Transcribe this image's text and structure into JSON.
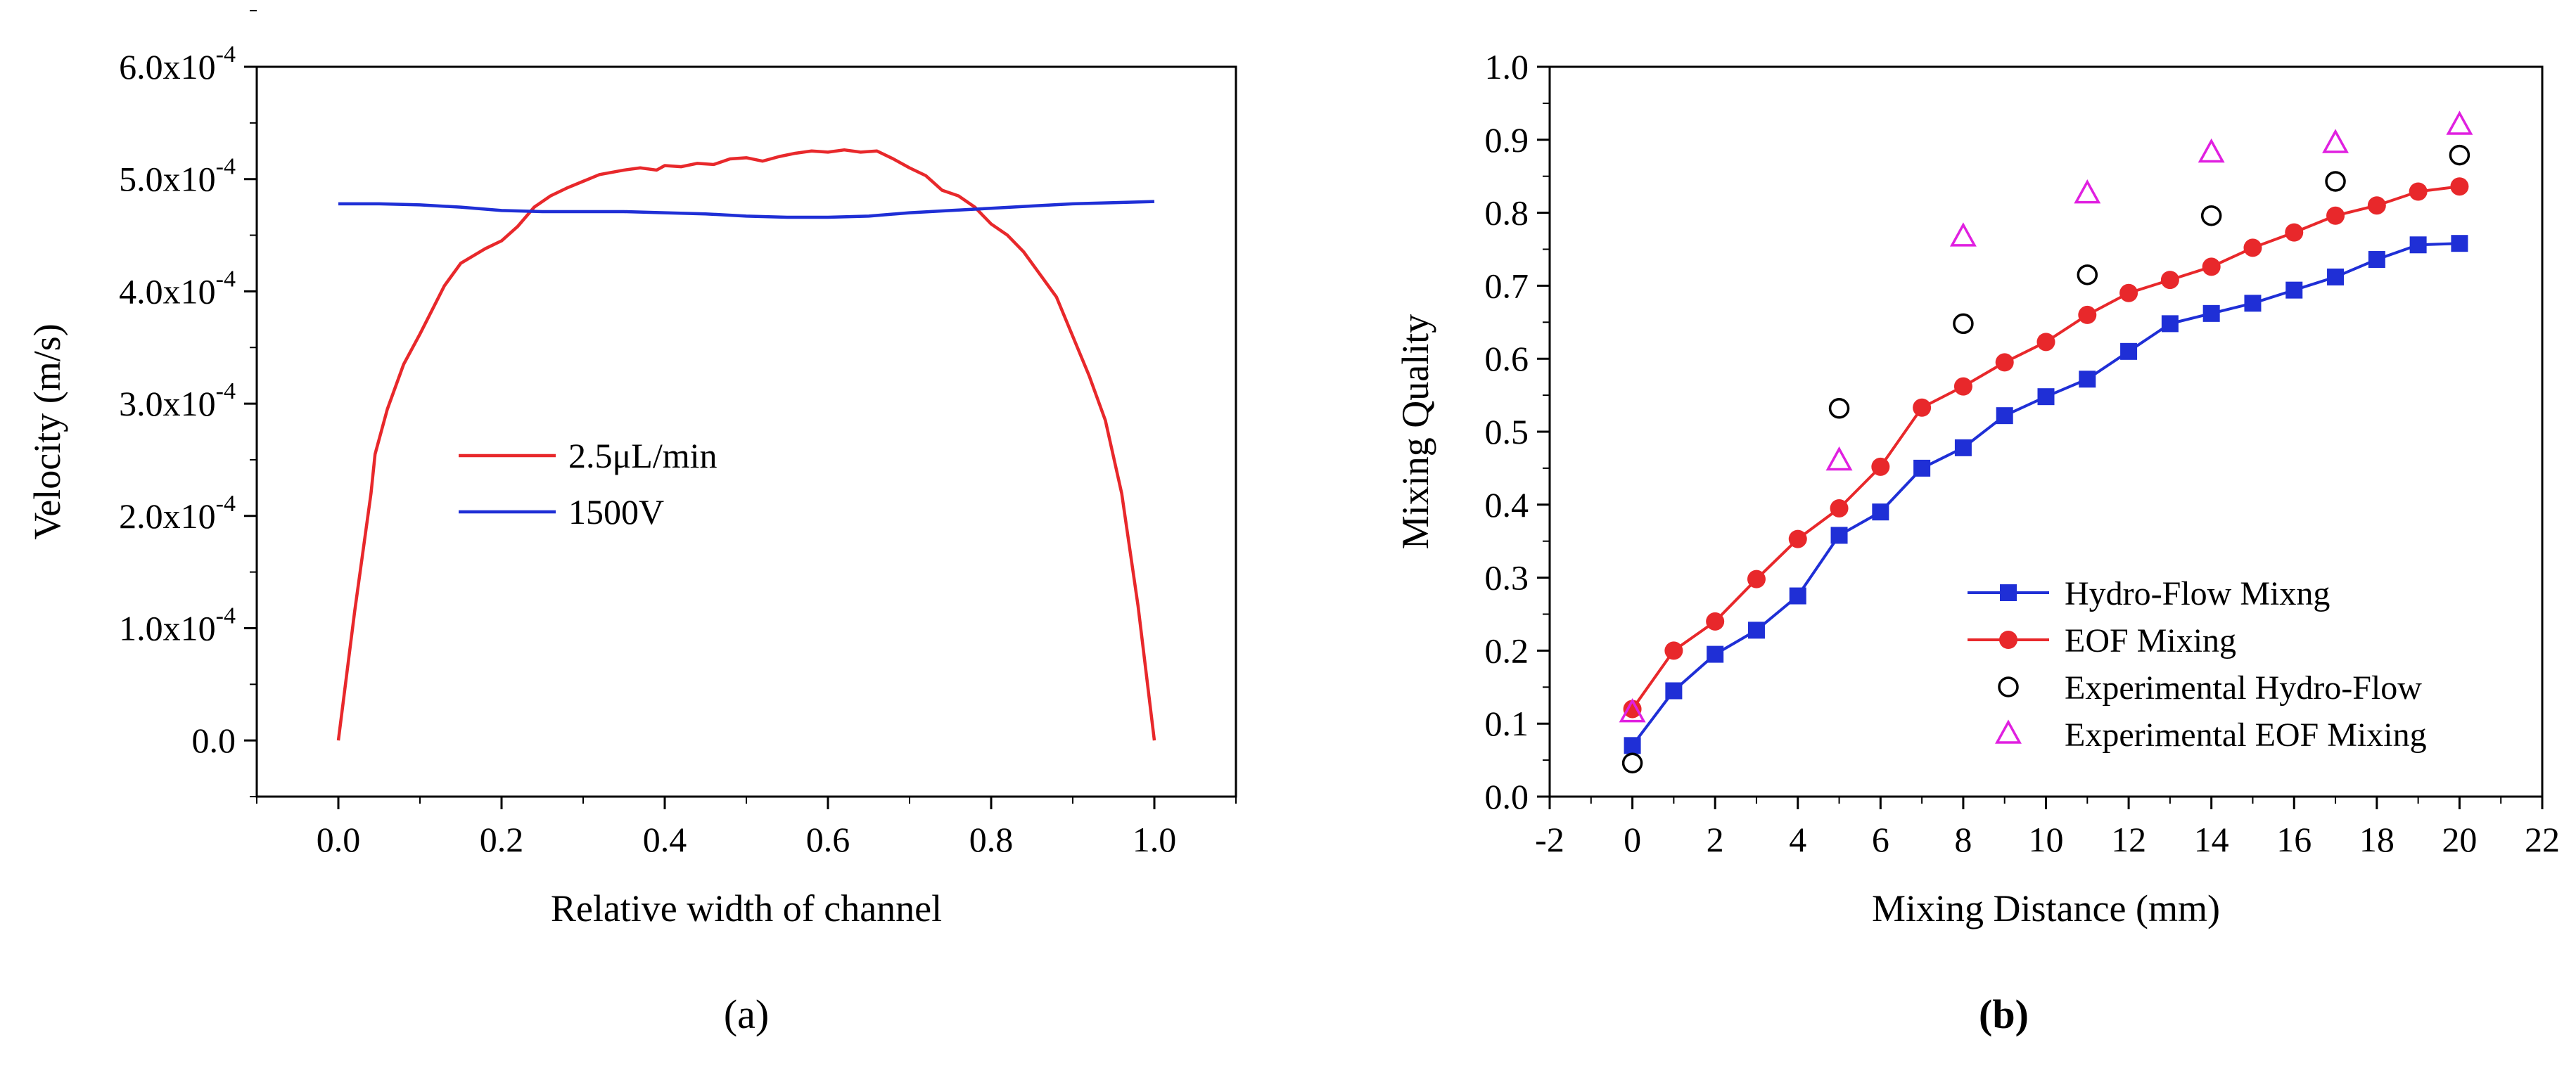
{
  "chart_data": [
    {
      "panel_label": "(a)",
      "type": "line",
      "title": "",
      "xlabel": "Relative width of channel",
      "ylabel": "Velocity (m/s)",
      "xlim": [
        -0.1,
        1.1
      ],
      "ylim": [
        -5e-05,
        0.0006
      ],
      "xticks": [
        0.0,
        0.2,
        0.4,
        0.6,
        0.8,
        1.0
      ],
      "xtick_labels": [
        "0.0",
        "0.2",
        "0.4",
        "0.6",
        "0.8",
        "1.0"
      ],
      "yticks": [
        0,
        0.0001,
        0.0002,
        0.0003,
        0.0004,
        0.0005,
        0.0006
      ],
      "ytick_labels": [
        {
          "mant": "0.0",
          "exp": ""
        },
        {
          "mant": "1.0x10",
          "exp": "-4"
        },
        {
          "mant": "2.0x10",
          "exp": "-4"
        },
        {
          "mant": "3.0x10",
          "exp": "-4"
        },
        {
          "mant": "4.0x10",
          "exp": "-4"
        },
        {
          "mant": "5.0x10",
          "exp": "-4"
        },
        {
          "mant": "6.0x10",
          "exp": "-4"
        }
      ],
      "legend_position": "center",
      "series": [
        {
          "name": "2.5μL/min",
          "color": "#e8282b",
          "x": [
            0.0,
            0.02,
            0.04,
            0.045,
            0.06,
            0.08,
            0.1,
            0.13,
            0.15,
            0.18,
            0.2,
            0.22,
            0.24,
            0.26,
            0.28,
            0.3,
            0.32,
            0.35,
            0.37,
            0.39,
            0.4,
            0.42,
            0.44,
            0.46,
            0.48,
            0.5,
            0.52,
            0.54,
            0.56,
            0.58,
            0.6,
            0.62,
            0.64,
            0.66,
            0.68,
            0.7,
            0.72,
            0.74,
            0.76,
            0.78,
            0.8,
            0.82,
            0.84,
            0.86,
            0.88,
            0.9,
            0.92,
            0.94,
            0.96,
            0.98,
            1.0
          ],
          "y": [
            0.0,
            0.000115,
            0.00022,
            0.000255,
            0.000295,
            0.000335,
            0.000362,
            0.000405,
            0.000425,
            0.000438,
            0.000445,
            0.000458,
            0.000475,
            0.000485,
            0.000492,
            0.000498,
            0.000504,
            0.000508,
            0.00051,
            0.000508,
            0.000512,
            0.000511,
            0.000514,
            0.000513,
            0.000518,
            0.000519,
            0.000516,
            0.00052,
            0.000523,
            0.000525,
            0.000524,
            0.000526,
            0.000524,
            0.000525,
            0.000518,
            0.00051,
            0.000503,
            0.00049,
            0.000485,
            0.000475,
            0.00046,
            0.00045,
            0.000435,
            0.000415,
            0.000395,
            0.00036,
            0.000325,
            0.000285,
            0.00022,
            0.00012,
            0.0
          ]
        },
        {
          "name": "1500V",
          "color": "#1f2fd6",
          "x": [
            0.0,
            0.05,
            0.1,
            0.15,
            0.2,
            0.25,
            0.3,
            0.35,
            0.4,
            0.45,
            0.5,
            0.55,
            0.6,
            0.65,
            0.7,
            0.75,
            0.8,
            0.85,
            0.9,
            0.95,
            1.0
          ],
          "y": [
            0.000478,
            0.000478,
            0.000477,
            0.000475,
            0.000472,
            0.000471,
            0.000471,
            0.000471,
            0.00047,
            0.000469,
            0.000467,
            0.000466,
            0.000466,
            0.000467,
            0.00047,
            0.000472,
            0.000474,
            0.000476,
            0.000478,
            0.000479,
            0.00048
          ]
        }
      ]
    },
    {
      "panel_label": "(b)",
      "type": "line",
      "title": "",
      "xlabel": "Mixing Distance (mm)",
      "ylabel": "Mixing Quality",
      "xlim": [
        -2,
        22
      ],
      "ylim": [
        0.0,
        1.0
      ],
      "xticks": [
        -2,
        0,
        2,
        4,
        6,
        8,
        10,
        12,
        14,
        16,
        18,
        20,
        22
      ],
      "xtick_labels": [
        "-2",
        "0",
        "2",
        "4",
        "6",
        "8",
        "10",
        "12",
        "14",
        "16",
        "18",
        "20",
        "22"
      ],
      "yticks": [
        0.0,
        0.1,
        0.2,
        0.3,
        0.4,
        0.5,
        0.6,
        0.7,
        0.8,
        0.9,
        1.0
      ],
      "ytick_labels": [
        "0.0",
        "0.1",
        "0.2",
        "0.3",
        "0.4",
        "0.5",
        "0.6",
        "0.7",
        "0.8",
        "0.9",
        "1.0"
      ],
      "legend_position": "bottom-right",
      "series": [
        {
          "name": "Hydro-Flow Mixng",
          "color": "#1f2fd6",
          "marker": "square",
          "line": true,
          "x": [
            0,
            1,
            2,
            3,
            4,
            5,
            6,
            7,
            8,
            9,
            10,
            11,
            12,
            13,
            14,
            15,
            16,
            17,
            18,
            19,
            20
          ],
          "y": [
            0.07,
            0.145,
            0.195,
            0.228,
            0.275,
            0.358,
            0.39,
            0.45,
            0.478,
            0.522,
            0.548,
            0.572,
            0.61,
            0.648,
            0.662,
            0.676,
            0.694,
            0.712,
            0.736,
            0.756,
            0.758
          ]
        },
        {
          "name": "EOF Mixing",
          "color": "#e8282b",
          "marker": "circle",
          "line": true,
          "x": [
            0,
            1,
            2,
            3,
            4,
            5,
            6,
            7,
            8,
            9,
            10,
            11,
            12,
            13,
            14,
            15,
            16,
            17,
            18,
            19,
            20
          ],
          "y": [
            0.12,
            0.2,
            0.24,
            0.298,
            0.353,
            0.395,
            0.452,
            0.533,
            0.562,
            0.595,
            0.623,
            0.66,
            0.69,
            0.708,
            0.726,
            0.752,
            0.773,
            0.796,
            0.81,
            0.829,
            0.836
          ]
        },
        {
          "name": "Experimental Hydro-Flow",
          "color": "#000000",
          "marker": "open-circle",
          "line": false,
          "x": [
            0,
            5,
            8,
            11,
            14,
            17,
            20
          ],
          "y": [
            0.046,
            0.532,
            0.648,
            0.715,
            0.796,
            0.843,
            0.879
          ]
        },
        {
          "name": "Experimental EOF Mixing",
          "color": "#e020e0",
          "marker": "open-triangle",
          "line": false,
          "x": [
            0,
            5,
            8,
            11,
            14,
            17,
            20
          ],
          "y": [
            0.115,
            0.46,
            0.767,
            0.826,
            0.882,
            0.895,
            0.92
          ]
        }
      ]
    }
  ]
}
